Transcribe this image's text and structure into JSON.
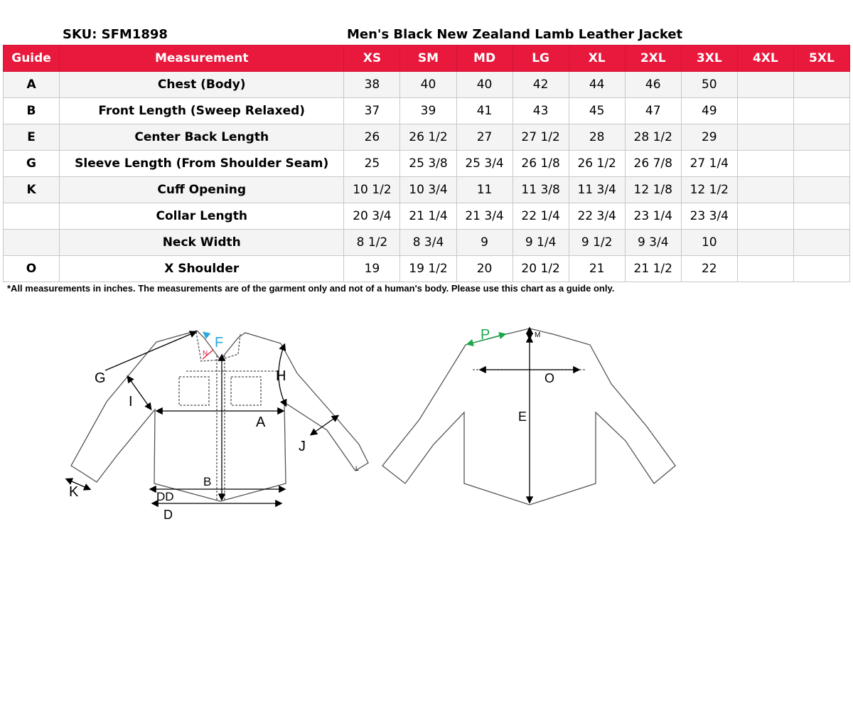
{
  "sku": "SKU: SFM1898",
  "title": "Men's Black New Zealand Lamb Leather Jacket",
  "colors": {
    "header_bg": "#e8193c",
    "header_text": "#ffffff"
  },
  "table": {
    "headers": [
      "Guide",
      "Measurement",
      "XS",
      "SM",
      "MD",
      "LG",
      "XL",
      "2XL",
      "3XL",
      "4XL",
      "5XL"
    ],
    "rows": [
      {
        "guide": "A",
        "measurement": "Chest (Body)",
        "values": [
          "38",
          "40",
          "40",
          "42",
          "44",
          "46",
          "50",
          "",
          ""
        ]
      },
      {
        "guide": "B",
        "measurement": "Front Length (Sweep Relaxed)",
        "values": [
          "37",
          "39",
          "41",
          "43",
          "45",
          "47",
          "49",
          "",
          ""
        ]
      },
      {
        "guide": "E",
        "measurement": "Center Back Length",
        "values": [
          "26",
          "26 1/2",
          "27",
          "27 1/2",
          "28",
          "28 1/2",
          "29",
          "",
          ""
        ]
      },
      {
        "guide": "G",
        "measurement": "Sleeve Length (From Shoulder Seam)",
        "values": [
          "25",
          "25 3/8",
          "25 3/4",
          "26 1/8",
          "26 1/2",
          "26 7/8",
          "27 1/4",
          "",
          ""
        ]
      },
      {
        "guide": "K",
        "measurement": "Cuff Opening",
        "values": [
          "10 1/2",
          "10 3/4",
          "11",
          "11 3/8",
          "11 3/4",
          "12 1/8",
          "12 1/2",
          "",
          ""
        ]
      },
      {
        "guide": "",
        "measurement": "Collar Length",
        "values": [
          "20 3/4",
          "21 1/4",
          "21 3/4",
          "22 1/4",
          "22 3/4",
          "23 1/4",
          "23 3/4",
          "",
          ""
        ]
      },
      {
        "guide": "",
        "measurement": "Neck Width",
        "values": [
          "8 1/2",
          "8 3/4",
          "9",
          "9 1/4",
          "9 1/2",
          "9 3/4",
          "10",
          "",
          ""
        ]
      },
      {
        "guide": "O",
        "measurement": "X Shoulder",
        "values": [
          "19",
          "19 1/2",
          "20",
          "20 1/2",
          "21",
          "21 1/2",
          "22",
          "",
          ""
        ]
      }
    ]
  },
  "note": "*All measurements in inches. The measurements are of the garment only and not of a human's body. Please use this chart as a guide only.",
  "diagram": {
    "front_labels": {
      "G": "G",
      "I": "I",
      "F": "F",
      "N": "N",
      "H": "H",
      "A": "A",
      "J": "J",
      "K": "K",
      "B": "B",
      "DD": "DD",
      "D": "D",
      "L": "L"
    },
    "back_labels": {
      "P": "P",
      "M": "M",
      "O": "O",
      "E": "E"
    }
  }
}
